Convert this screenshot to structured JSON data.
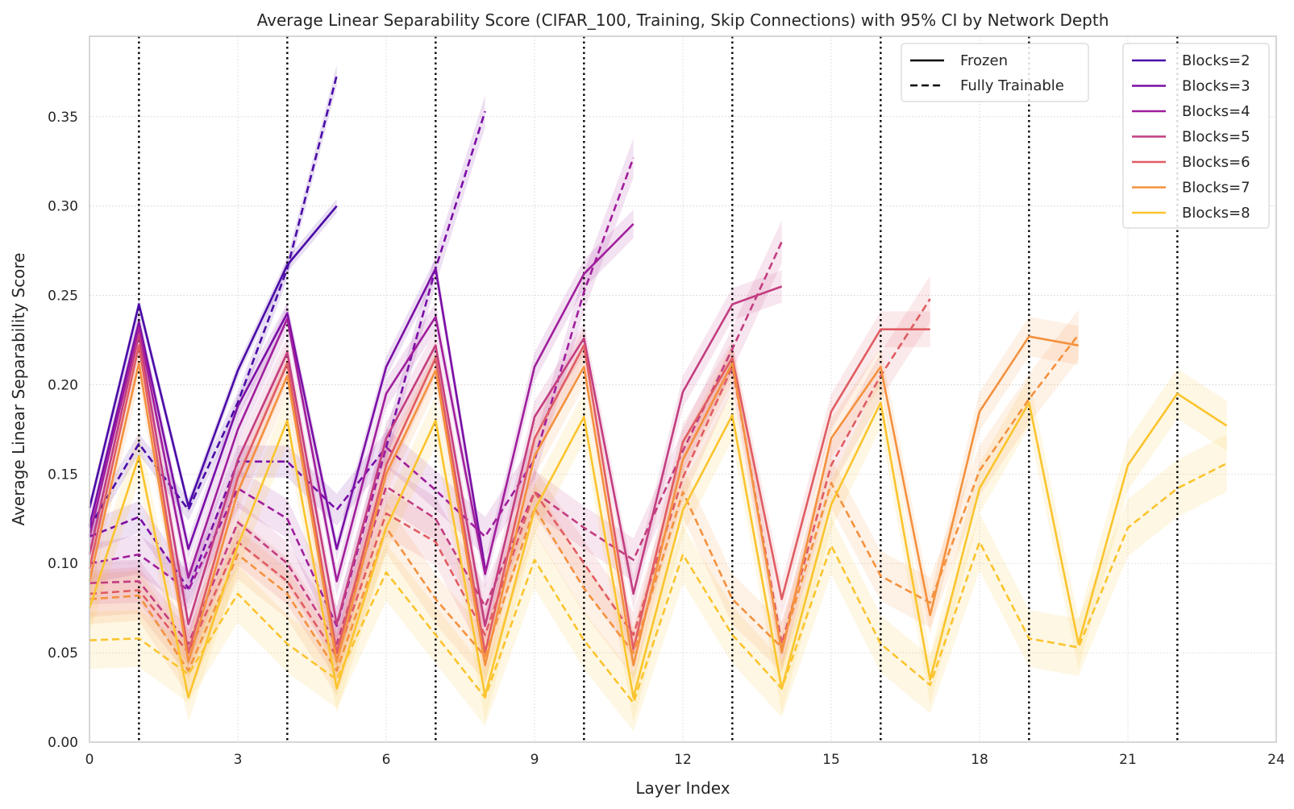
{
  "chart_data": {
    "type": "line",
    "title": "Average Linear Separability Score (CIFAR_100, Training, Skip Connections) with 95% CI by Network Depth",
    "xlabel": "Layer Index",
    "ylabel": "Average Linear Separability Score",
    "xlim": [
      0,
      24
    ],
    "ylim": [
      0,
      0.395
    ],
    "xticks": [
      0,
      3,
      6,
      9,
      12,
      15,
      18,
      21,
      24
    ],
    "yticks": [
      0.0,
      0.05,
      0.1,
      0.15,
      0.2,
      0.25,
      0.3,
      0.35
    ],
    "ytick_labels": [
      "0.00",
      "0.05",
      "0.10",
      "0.15",
      "0.20",
      "0.25",
      "0.30",
      "0.35"
    ],
    "grid": true,
    "vertical_lines": [
      1,
      4,
      7,
      10,
      13,
      16,
      19,
      22
    ],
    "style_legend": {
      "placement": "top-right",
      "entries": [
        {
          "label": "Frozen",
          "style": "solid"
        },
        {
          "label": "Fully Trainable",
          "style": "dashed"
        }
      ]
    },
    "color_legend": {
      "placement": "top-right",
      "entries": [
        "Blocks=2",
        "Blocks=3",
        "Blocks=4",
        "Blocks=5",
        "Blocks=6",
        "Blocks=7",
        "Blocks=8"
      ]
    },
    "series": [
      {
        "name": "Blocks=2",
        "color": "#4a0aa6",
        "frozen": [
          0.131,
          0.245,
          0.132,
          0.208,
          0.267,
          0.3
        ],
        "trainable": [
          0.12,
          0.167,
          0.13,
          0.19,
          0.265,
          0.373
        ],
        "ci_frozen": 0.004,
        "ci_trainable": 0.006
      },
      {
        "name": "Blocks=3",
        "color": "#7a0ea6",
        "frozen": [
          0.121,
          0.235,
          0.108,
          0.188,
          0.24,
          0.108,
          0.21,
          0.265,
          0.097
        ],
        "trainable": [
          0.115,
          0.126,
          0.086,
          0.157,
          0.157,
          0.13,
          0.165,
          0.265,
          0.353
        ],
        "ci_frozen": 0.006,
        "ci_trainable": 0.009
      },
      {
        "name": "Blocks=4",
        "color": "#a01e9c",
        "frozen": [
          0.115,
          0.232,
          0.092,
          0.175,
          0.237,
          0.09,
          0.195,
          0.238,
          0.094,
          0.21,
          0.262,
          0.29
        ],
        "trainable": [
          0.1,
          0.105,
          0.085,
          0.142,
          0.125,
          0.065,
          0.165,
          0.141,
          0.115,
          0.158,
          0.252,
          0.327
        ],
        "ci_frozen": 0.008,
        "ci_trainable": 0.011
      },
      {
        "name": "Blocks=5",
        "color": "#c33d80",
        "frozen": [
          0.105,
          0.228,
          0.066,
          0.158,
          0.218,
          0.066,
          0.17,
          0.222,
          0.065,
          0.182,
          0.226,
          0.083,
          0.196,
          0.245,
          0.255
        ],
        "trainable": [
          0.089,
          0.09,
          0.055,
          0.123,
          0.1,
          0.055,
          0.143,
          0.125,
          0.076,
          0.14,
          0.12,
          0.102,
          0.163,
          0.22,
          0.28
        ],
        "ci_frozen": 0.009,
        "ci_trainable": 0.012
      },
      {
        "name": "Blocks=6",
        "color": "#e05c62",
        "frozen": [
          0.097,
          0.222,
          0.05,
          0.148,
          0.212,
          0.05,
          0.155,
          0.215,
          0.05,
          0.17,
          0.222,
          0.052,
          0.168,
          0.215,
          0.08,
          0.185,
          0.231,
          0.231
        ],
        "trainable": [
          0.083,
          0.085,
          0.05,
          0.112,
          0.09,
          0.048,
          0.128,
          0.112,
          0.06,
          0.14,
          0.1,
          0.06,
          0.148,
          0.21,
          0.055,
          0.155,
          0.205,
          0.248
        ],
        "ci_frozen": 0.01,
        "ci_trainable": 0.013
      },
      {
        "name": "Blocks=7",
        "color": "#f4913e",
        "frozen": [
          0.09,
          0.212,
          0.045,
          0.14,
          0.205,
          0.045,
          0.15,
          0.208,
          0.043,
          0.16,
          0.21,
          0.043,
          0.158,
          0.212,
          0.05,
          0.17,
          0.21,
          0.071,
          0.185,
          0.227,
          0.222
        ],
        "trainable": [
          0.08,
          0.082,
          0.04,
          0.105,
          0.083,
          0.04,
          0.12,
          0.08,
          0.048,
          0.131,
          0.086,
          0.05,
          0.14,
          0.08,
          0.053,
          0.145,
          0.093,
          0.078,
          0.152,
          0.192,
          0.228
        ],
        "ci_frozen": 0.011,
        "ci_trainable": 0.014
      },
      {
        "name": "Blocks=8",
        "color": "#fbc42d",
        "frozen": [
          0.075,
          0.16,
          0.025,
          0.11,
          0.18,
          0.03,
          0.12,
          0.18,
          0.026,
          0.13,
          0.182,
          0.025,
          0.13,
          0.183,
          0.03,
          0.133,
          0.19,
          0.035,
          0.142,
          0.19,
          0.055,
          0.155,
          0.195,
          0.177
        ],
        "trainable": [
          0.057,
          0.058,
          0.038,
          0.083,
          0.055,
          0.035,
          0.095,
          0.06,
          0.025,
          0.102,
          0.057,
          0.022,
          0.105,
          0.06,
          0.03,
          0.11,
          0.055,
          0.032,
          0.112,
          0.058,
          0.053,
          0.12,
          0.142,
          0.156
        ],
        "ci_frozen": 0.014,
        "ci_trainable": 0.016
      }
    ]
  }
}
